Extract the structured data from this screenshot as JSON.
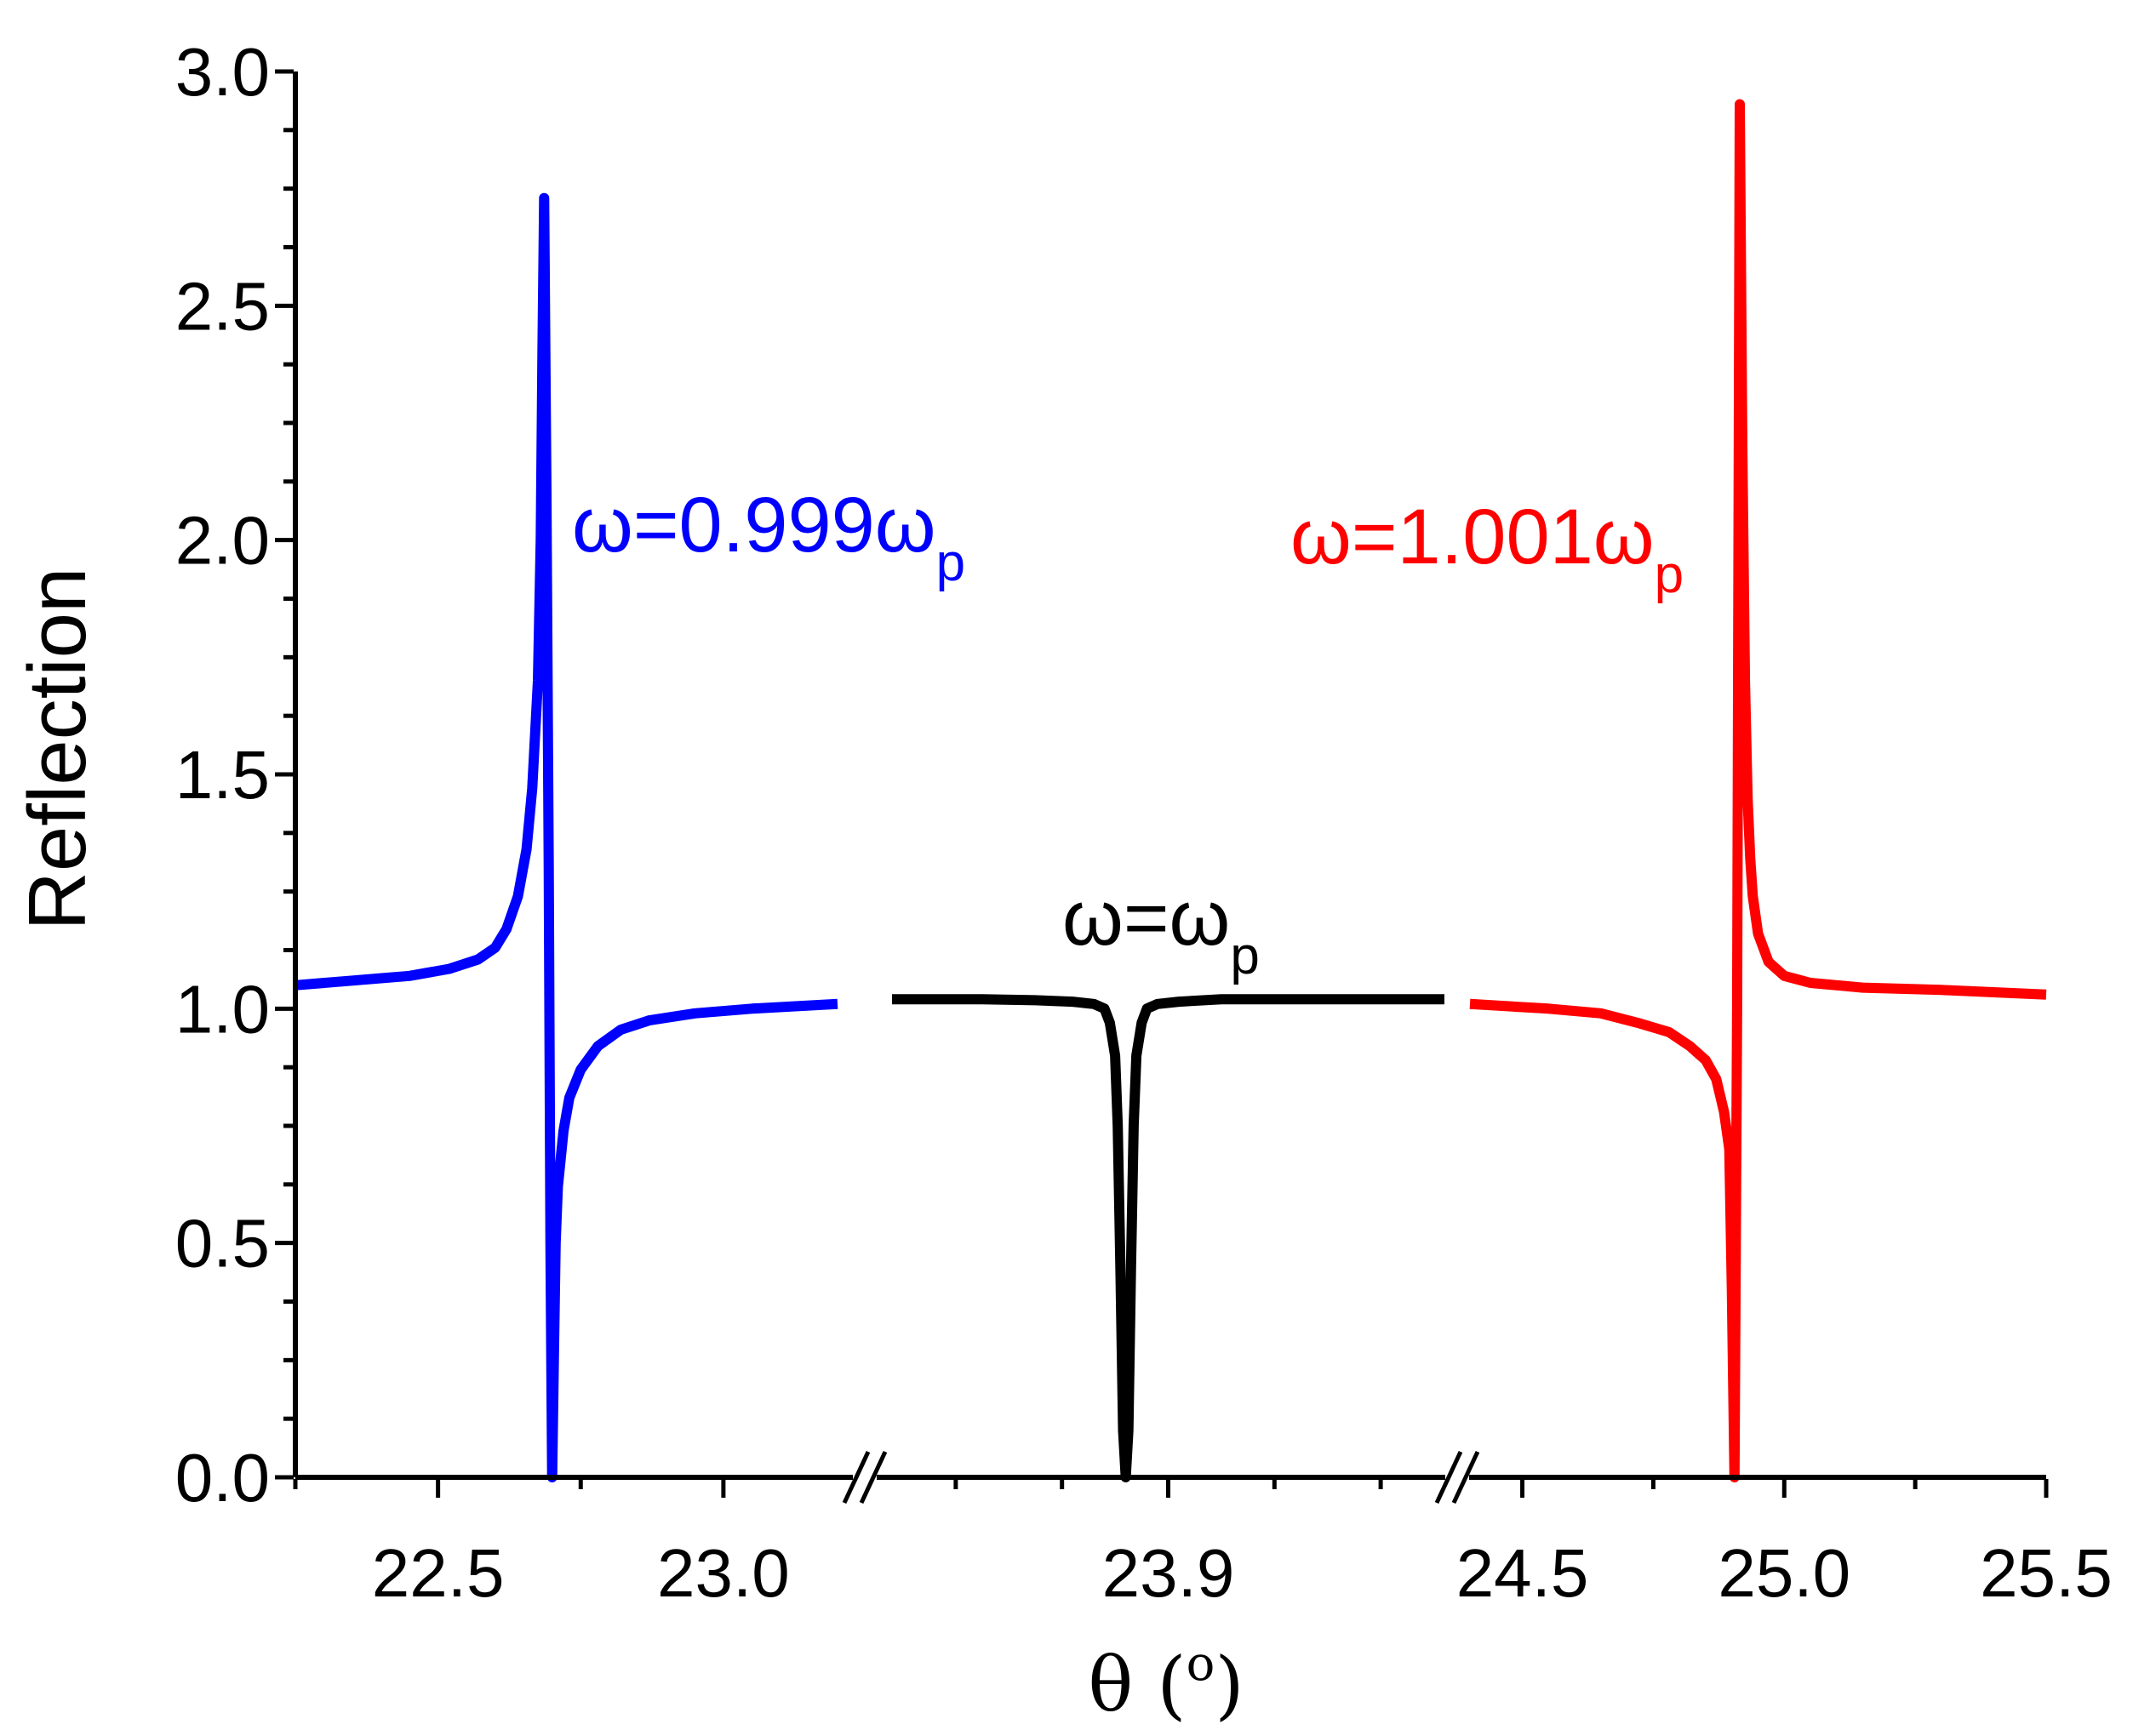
{
  "chart_data": {
    "type": "line",
    "title": "",
    "xlabel": "θ (°)",
    "xlabel_main": "θ (",
    "xlabel_degree": "o",
    "xlabel_close": ")",
    "ylabel": "Reflection",
    "ylim": [
      0,
      3.0
    ],
    "y_ticks": [
      "0.0",
      "0.5",
      "1.0",
      "1.5",
      "2.0",
      "2.5",
      "3.0"
    ],
    "y_tick_values": [
      0,
      0.5,
      1.0,
      1.5,
      2.0,
      2.5,
      3.0
    ],
    "x_tick_labels": [
      "22.5",
      "23.0",
      "23.9",
      "24.5",
      "25.0",
      "25.5"
    ],
    "grid": false,
    "legend": "none",
    "segments": [
      {
        "xlim": [
          22.25,
          23.2
        ],
        "major_ticks": [
          22.5,
          23.0
        ],
        "minor_ticks": [
          22.25,
          22.75
        ],
        "break_after": false
      },
      {
        "xlim": [
          23.38,
          24.42
        ],
        "major_ticks": [
          23.9
        ],
        "minor_ticks": [
          23.5,
          23.7,
          24.1,
          24.3
        ],
        "break_after": false
      },
      {
        "xlim": [
          24.4,
          25.5
        ],
        "major_ticks": [
          24.5,
          25.0,
          25.5
        ],
        "minor_ticks": [
          24.75,
          25.25
        ],
        "break_after": false
      }
    ],
    "axis_breaks": [
      23.2,
      24.42
    ],
    "series": [
      {
        "name": "ω=0.999ω_p",
        "color": "#0000ff",
        "segment": 0,
        "x": [
          22.25,
          22.35,
          22.45,
          22.52,
          22.57,
          22.6,
          22.62,
          22.64,
          22.655,
          22.665,
          22.675,
          22.68,
          22.683,
          22.686,
          22.69,
          22.694,
          22.697,
          22.7,
          22.703,
          22.706,
          22.71,
          22.72,
          22.73,
          22.75,
          22.78,
          22.82,
          22.87,
          22.95,
          23.05,
          23.2
        ],
        "y": [
          1.05,
          1.06,
          1.07,
          1.085,
          1.105,
          1.13,
          1.17,
          1.24,
          1.34,
          1.47,
          1.7,
          2.0,
          2.4,
          2.73,
          2.1,
          1.3,
          0.5,
          0.0,
          0.25,
          0.5,
          0.62,
          0.74,
          0.81,
          0.87,
          0.92,
          0.955,
          0.975,
          0.99,
          1.0,
          1.01
        ]
      },
      {
        "name": "ω=ω_p",
        "color": "#000000",
        "segment": 1,
        "x": [
          23.38,
          23.55,
          23.65,
          23.72,
          23.76,
          23.78,
          23.79,
          23.8,
          23.805,
          23.81,
          23.815,
          23.82,
          23.825,
          23.83,
          23.835,
          23.84,
          23.85,
          23.86,
          23.88,
          23.92,
          24.0,
          24.42
        ],
        "y": [
          1.02,
          1.02,
          1.018,
          1.015,
          1.01,
          1.0,
          0.97,
          0.9,
          0.75,
          0.45,
          0.1,
          0.0,
          0.1,
          0.45,
          0.75,
          0.9,
          0.97,
          1.0,
          1.01,
          1.015,
          1.02,
          1.02
        ]
      },
      {
        "name": "ω=1.001ω_p",
        "color": "#ff0000",
        "segment": 2,
        "x": [
          24.4,
          24.55,
          24.65,
          24.72,
          24.78,
          24.82,
          24.85,
          24.87,
          24.885,
          24.895,
          24.9,
          24.905,
          24.91,
          24.915,
          24.92,
          24.925,
          24.93,
          24.935,
          24.94,
          24.95,
          24.97,
          25.0,
          25.05,
          25.15,
          25.3,
          25.5
        ],
        "y": [
          1.01,
          1.0,
          0.99,
          0.97,
          0.95,
          0.92,
          0.89,
          0.85,
          0.78,
          0.7,
          0.4,
          0.0,
          1.0,
          2.93,
          2.2,
          1.7,
          1.45,
          1.32,
          1.24,
          1.16,
          1.1,
          1.07,
          1.055,
          1.045,
          1.04,
          1.03
        ]
      }
    ],
    "annotations": [
      {
        "main": "ω=0.999ω",
        "sub": "p",
        "color": "#0000ff"
      },
      {
        "main": "ω=ω",
        "sub": "p",
        "color": "#000000"
      },
      {
        "main": "ω=1.001ω",
        "sub": "p",
        "color": "#ff0000"
      }
    ]
  }
}
